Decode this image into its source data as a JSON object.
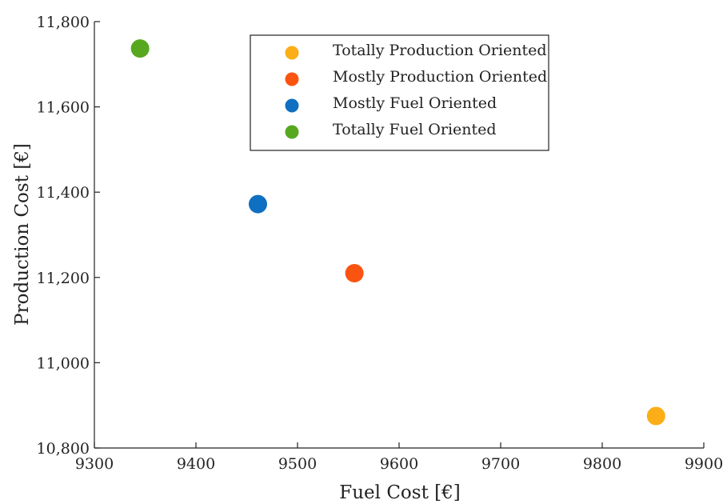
{
  "chart_data": {
    "type": "scatter",
    "title": "",
    "xlabel": "Fuel Cost [€]",
    "ylabel": "Production Cost [€]",
    "xlim": [
      9300,
      9900
    ],
    "ylim": [
      10800,
      11800
    ],
    "x_ticks": [
      9300,
      9400,
      9500,
      9600,
      9700,
      9800,
      9900
    ],
    "x_tick_labels": [
      "9300",
      "9400",
      "9500",
      "9600",
      "9700",
      "9800",
      "9900"
    ],
    "y_ticks": [
      10800,
      11000,
      11200,
      11400,
      11600,
      11800
    ],
    "y_tick_labels": [
      "10,800",
      "11,000",
      "11,200",
      "11,400",
      "11,600",
      "11,800"
    ],
    "grid": false,
    "legend_position": "top-center",
    "series": [
      {
        "name": "Totally Production Oriented",
        "color": "#fbae17",
        "x": [
          9853
        ],
        "y": [
          10875
        ]
      },
      {
        "name": "Mostly Production Oriented",
        "color": "#fb5410",
        "x": [
          9556
        ],
        "y": [
          11210
        ]
      },
      {
        "name": "Mostly Fuel Oriented",
        "color": "#0f6fc0",
        "x": [
          9461
        ],
        "y": [
          11372
        ]
      },
      {
        "name": "Totally Fuel Oriented",
        "color": "#57a81f",
        "x": [
          9345
        ],
        "y": [
          11737
        ]
      }
    ]
  }
}
